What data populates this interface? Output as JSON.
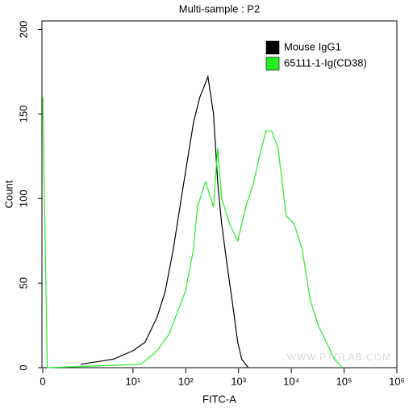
{
  "chart_data": {
    "type": "line",
    "title": "Multi-sample : P2",
    "x_label": "FITC-A",
    "y_label": "Count",
    "watermark": "WWW.PTGLAB.COM",
    "xscale": "biexponential",
    "xlim": [
      0,
      1000000
    ],
    "xticks": [
      0,
      {
        "value": 10,
        "label": "10¹"
      },
      {
        "value": 100,
        "label": "10²"
      },
      {
        "value": 1000,
        "label": "10³"
      },
      {
        "value": 10000,
        "label": "10⁴"
      },
      {
        "value": 100000,
        "label": "10⁵"
      },
      {
        "value": 1000000,
        "label": "10⁶"
      }
    ],
    "ylim": [
      0,
      205
    ],
    "yticks": [
      0,
      50,
      100,
      150,
      200
    ],
    "legend": "top-right",
    "series": [
      {
        "name": "Mouse IgG1",
        "color": "#000000",
        "x": [
          4.2,
          7.8,
          10,
          16.9,
          28.7,
          40.8,
          58,
          82,
          117,
          140,
          185,
          263,
          336,
          401,
          478,
          611,
          755,
          966,
          1151,
          1525
        ],
        "values": [
          2,
          5,
          10,
          15,
          30,
          45,
          70,
          100,
          130,
          145,
          160,
          172,
          150,
          110,
          85,
          60,
          40,
          15,
          5,
          0
        ]
      },
      {
        "name": "65111-1-Ig(CD38)",
        "color": "#22ee22",
        "x": [
          0,
          0.5,
          14.2,
          28.7,
          48.6,
          98,
          140,
          166,
          236,
          336,
          401,
          478,
          679,
          966,
          1372,
          1950,
          2497,
          3306,
          4227,
          5598,
          7962,
          11300,
          16070,
          22860,
          32450,
          46100,
          65600,
          93100
        ],
        "values": [
          160,
          0,
          2,
          10,
          20,
          45,
          70,
          95,
          110,
          95,
          130,
          100,
          85,
          75,
          95,
          110,
          125,
          140,
          140,
          130,
          90,
          85,
          70,
          40,
          25,
          15,
          5,
          0
        ]
      }
    ]
  }
}
